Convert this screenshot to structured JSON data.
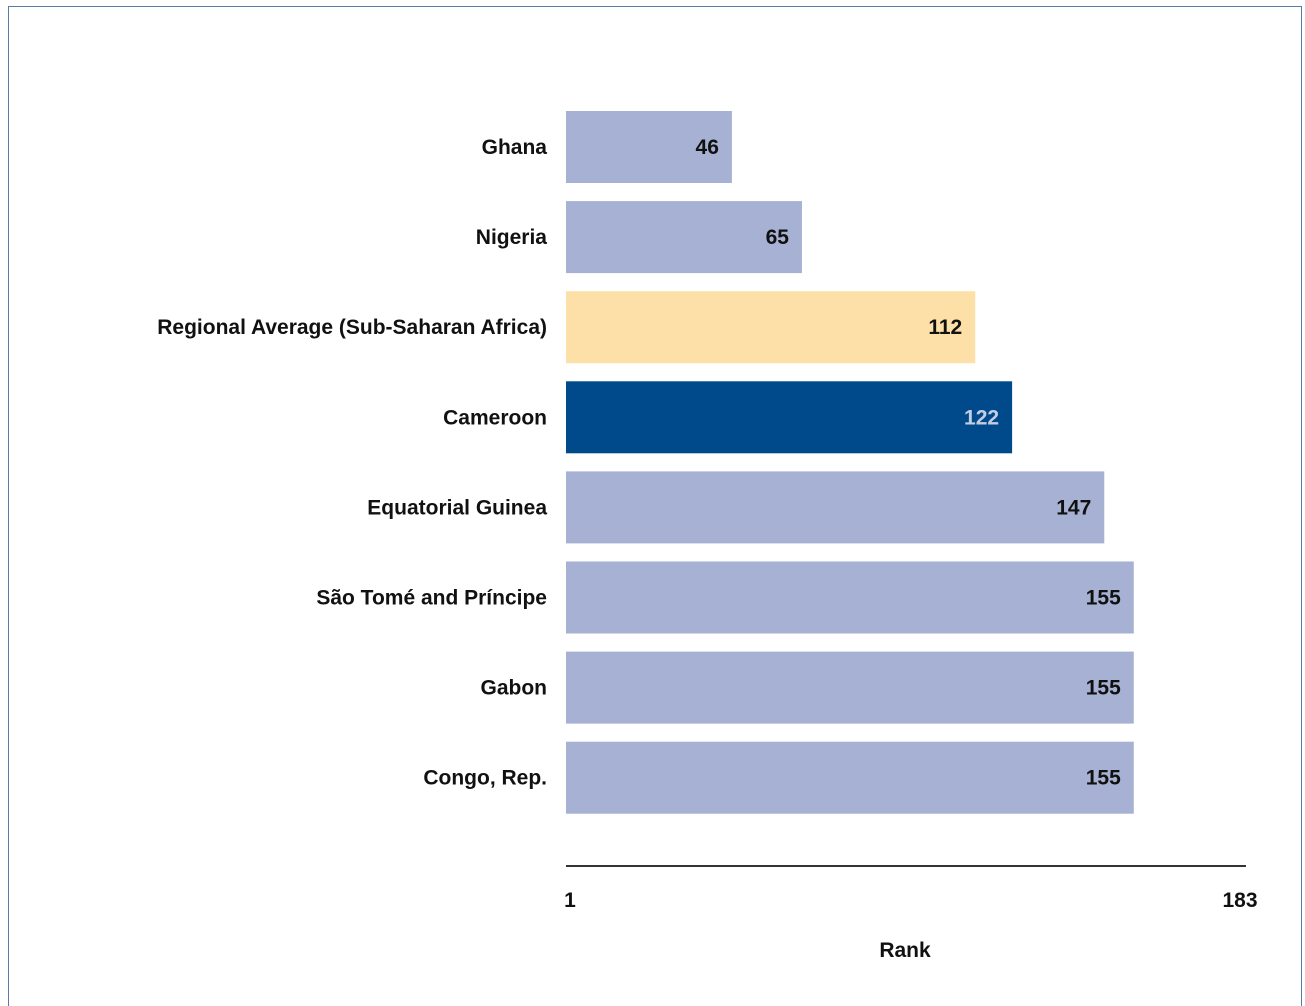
{
  "chart_data": {
    "type": "bar",
    "orientation": "horizontal",
    "categories": [
      "Ghana",
      "Nigeria",
      "Regional Average (Sub-Saharan Africa)",
      "Cameroon",
      "Equatorial Guinea",
      "São Tomé and Príncipe",
      "Gabon",
      "Congo, Rep."
    ],
    "values": [
      46,
      65,
      112,
      122,
      147,
      155,
      155,
      155
    ],
    "value_labels": [
      "46",
      "65",
      "112",
      "122",
      "147",
      "155",
      "155",
      "155"
    ],
    "bar_colors": [
      "#a6b1d3",
      "#a6b1d3",
      "#fde0a8",
      "#004a8c",
      "#a6b1d3",
      "#a6b1d3",
      "#a6b1d3",
      "#a6b1d3"
    ],
    "label_colors": [
      "#111111",
      "#111111",
      "#111111",
      "#c4cde3",
      "#111111",
      "#111111",
      "#111111",
      "#111111"
    ],
    "xlim": [
      1,
      183
    ],
    "xticks": [
      "1",
      "183"
    ],
    "xlabel": "Rank",
    "ylabel": "",
    "title": "",
    "grid": false,
    "legend": "none"
  }
}
